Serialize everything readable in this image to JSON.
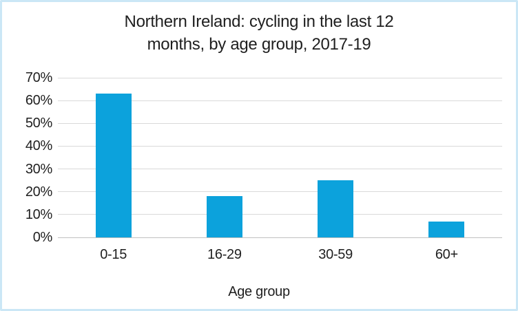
{
  "page": {
    "background": "#ffffff",
    "border_color": "#cbe7f6"
  },
  "chart_data": {
    "type": "bar",
    "title": "Northern Ireland: cycling in the last 12 months, by age group, 2017-19",
    "title_lines": [
      "Northern Ireland: cycling in the last 12",
      "months, by age group, 2017-19"
    ],
    "categories": [
      "0-15",
      "16-29",
      "30-59",
      "60+"
    ],
    "values": [
      63,
      18,
      25,
      7
    ],
    "value_unit": "%",
    "xlabel": "Age group",
    "ylabel": "",
    "ylim": [
      0,
      70
    ],
    "ytick_step": 10,
    "ytick_labels": [
      "0%",
      "10%",
      "20%",
      "30%",
      "40%",
      "50%",
      "60%",
      "70%"
    ],
    "grid": true,
    "legend": false,
    "bar_color": "#0ca2dc",
    "gridline_color": "#d9d9d9",
    "axisline_color": "#bfbfbf",
    "text_color": "#1f1f1f"
  }
}
